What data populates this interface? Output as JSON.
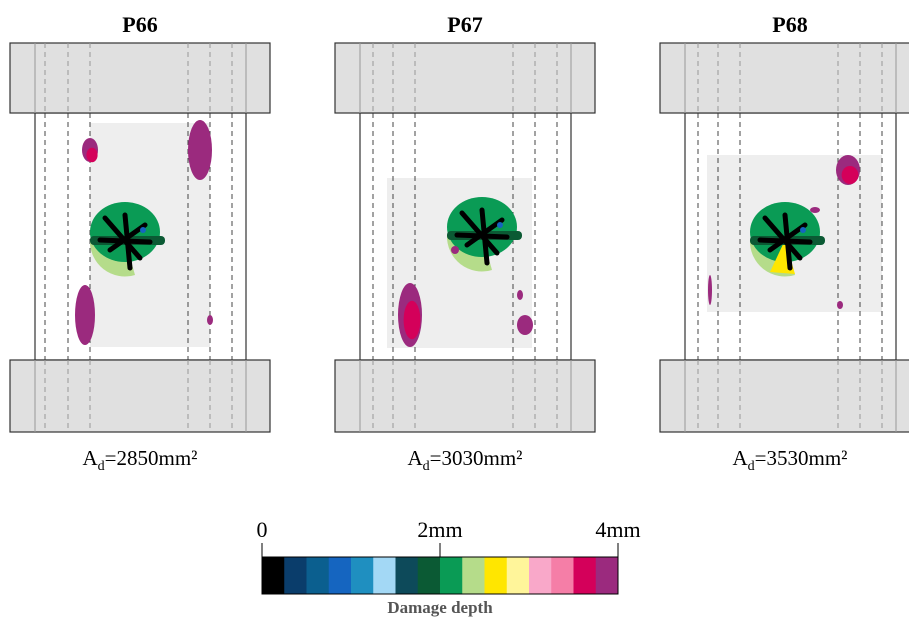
{
  "panels": [
    {
      "title": "P66",
      "label": {
        "symbol": "A",
        "subscript": "d",
        "value": "=2850mm²"
      }
    },
    {
      "title": "P67",
      "label": {
        "symbol": "A",
        "subscript": "d",
        "value": "=3030mm²"
      }
    },
    {
      "title": "P68",
      "label": {
        "symbol": "A",
        "subscript": "d",
        "value": "=3530mm²"
      }
    }
  ],
  "colorbar": {
    "title": "Damage depth",
    "range": [
      0,
      4
    ],
    "ticks": [
      0,
      {
        "value": 2,
        "label": "2mm"
      },
      {
        "value": 4,
        "label": "4mm"
      }
    ],
    "colors": [
      "#000000",
      "#0a3d6b",
      "#0b5f8f",
      "#1565c0",
      "#1f8fc0",
      "#a3d8f5",
      "#0d4a5a",
      "#0b5a34",
      "#0a9b55",
      "#b5dc8a",
      "#ffe600",
      "#fff59a",
      "#f9a8c9",
      "#f57ea7",
      "#d4005a",
      "#9b2a7e"
    ]
  }
}
